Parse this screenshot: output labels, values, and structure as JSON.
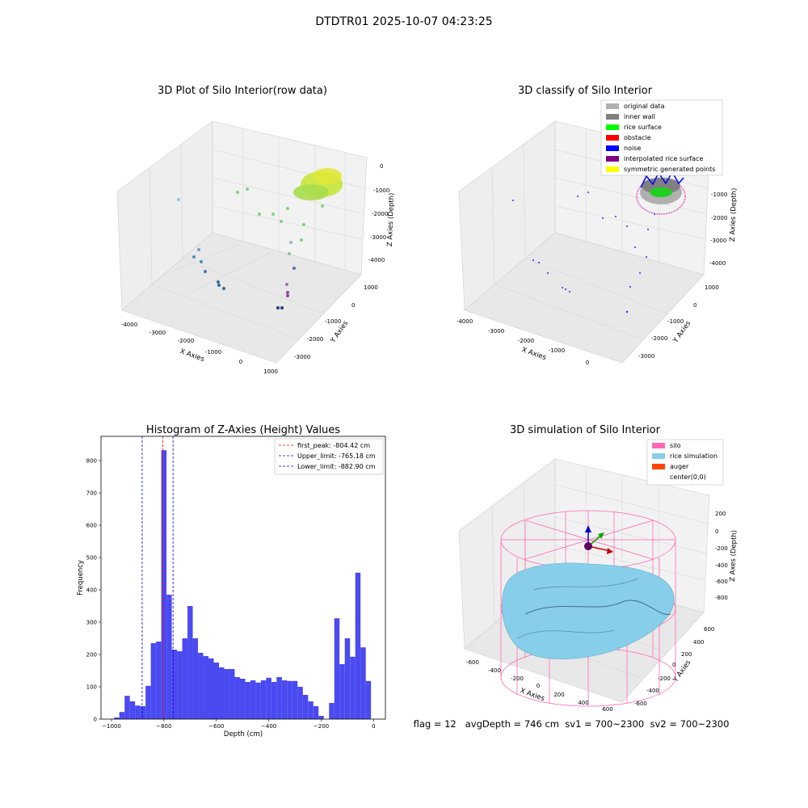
{
  "figure": {
    "title": "DTDTR01 2025-10-07 04:23:25",
    "status_line": "flag = 12   avgDepth = 746 cm  sv1 = 700~2300  sv2 = 700~2300"
  },
  "panel_raw": {
    "title": "3D Plot of Silo Interior(row data)",
    "xlabel": "X Axies",
    "ylabel": "Y Axies",
    "zlabel": "Z Axies (Depth)",
    "xticks": [
      "-4000",
      "-3000",
      "-2000",
      "-1000",
      "0",
      "1000"
    ],
    "yticks": [
      "1000",
      "0",
      "-1000",
      "-2000",
      "-3000"
    ],
    "zticks": [
      "0",
      "-1000",
      "-2000",
      "-3000",
      "-4000"
    ]
  },
  "panel_classify": {
    "title": "3D classify of Silo Interior",
    "xlabel": "X Axies",
    "ylabel": "Y Axies",
    "zlabel": "Z Axies (Depth)",
    "xticks": [
      "-4000",
      "-3000",
      "-2000",
      "-1000",
      "0"
    ],
    "yticks": [
      "1000",
      "0",
      "-1000",
      "-2000",
      "-3000"
    ],
    "zticks": [
      "-1000",
      "-2000",
      "-3000",
      "-4000"
    ],
    "legend": [
      {
        "label": "original data",
        "color": "#b0b0b0"
      },
      {
        "label": "inner wall",
        "color": "#808080"
      },
      {
        "label": "rice surface",
        "color": "#00ff00"
      },
      {
        "label": "obstacle",
        "color": "#ff0000"
      },
      {
        "label": "noise",
        "color": "#0000ff"
      },
      {
        "label": "interpolated rice surface",
        "color": "#800080"
      },
      {
        "label": "symmetric generated points",
        "color": "#ffff00"
      }
    ]
  },
  "panel_sim": {
    "title": "3D simulation of Silo Interior",
    "xlabel": "X Axies",
    "ylabel": "Y Axies",
    "zlabel": "Z Axes (Depth)",
    "xticks": [
      "-600",
      "-400",
      "-200",
      "0",
      "200",
      "400",
      "600"
    ],
    "yticks": [
      "600",
      "400",
      "200",
      "0",
      "-200",
      "-400",
      "-600"
    ],
    "zticks": [
      "200",
      "0",
      "-200",
      "-400",
      "-600",
      "-800"
    ],
    "legend": [
      {
        "label": "silo",
        "color": "#ff69b4"
      },
      {
        "label": "rice simulation",
        "color": "#87ceeb"
      },
      {
        "label": "auger",
        "color": "#ff4500"
      },
      {
        "label": "center(0,0)",
        "color": ""
      }
    ]
  },
  "chart_data": {
    "type": "bar",
    "title": "Histogram of Z-Axies (Height) Values",
    "xlabel": "Depth (cm)",
    "ylabel": "Frequency",
    "xlim": [
      -1040,
      45
    ],
    "ylim": [
      0,
      875
    ],
    "xticks": [
      -1000,
      -800,
      -600,
      -400,
      -200,
      0
    ],
    "yticks": [
      0,
      100,
      200,
      300,
      400,
      500,
      600,
      700,
      800
    ],
    "bar_color": "#4a4af0",
    "bin_width": 20,
    "bin_starts": [
      -990,
      -970,
      -950,
      -930,
      -910,
      -890,
      -870,
      -850,
      -830,
      -810,
      -790,
      -770,
      -750,
      -730,
      -710,
      -690,
      -670,
      -650,
      -630,
      -610,
      -590,
      -570,
      -550,
      -530,
      -510,
      -490,
      -470,
      -450,
      -430,
      -410,
      -390,
      -370,
      -350,
      -330,
      -310,
      -290,
      -270,
      -250,
      -230,
      -210,
      -190,
      -170,
      -150,
      -130,
      -110,
      -90,
      -70,
      -50,
      -30,
      -10
    ],
    "counts": [
      5,
      22,
      72,
      55,
      42,
      40,
      103,
      235,
      240,
      832,
      385,
      215,
      210,
      250,
      350,
      250,
      205,
      195,
      188,
      175,
      160,
      155,
      155,
      130,
      125,
      115,
      120,
      113,
      120,
      128,
      115,
      130,
      120,
      118,
      118,
      100,
      75,
      55,
      40,
      10,
      0,
      50,
      312,
      170,
      250,
      193,
      453,
      222,
      118,
      0
    ],
    "vlines": [
      {
        "label": "first_peak: -804.42 cm",
        "x": -804.42,
        "color": "#ff0000"
      },
      {
        "label": "Upper_limit: -765.18 cm",
        "x": -765.18,
        "color": "#0000cc"
      },
      {
        "label": "Lower_limit: -882.90 cm",
        "x": -882.9,
        "color": "#0000cc"
      }
    ],
    "legend_position": "upper right"
  }
}
